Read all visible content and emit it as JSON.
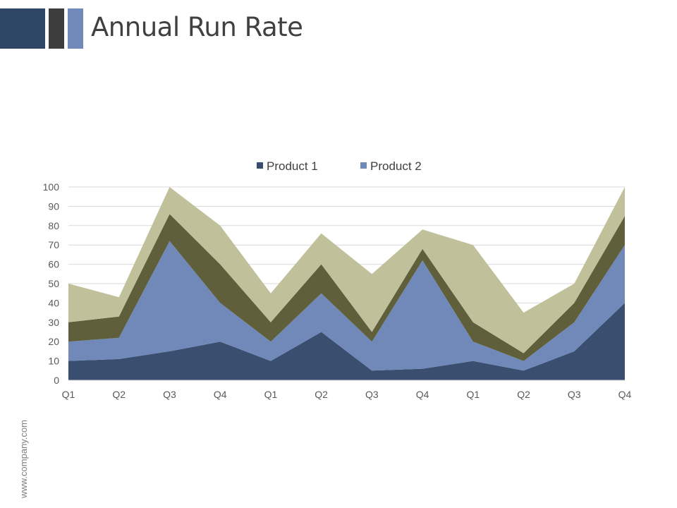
{
  "header": {
    "title": "Annual Run Rate"
  },
  "footer": {
    "watermark": "www.company.com"
  },
  "colors": {
    "product1": "#3a4f70",
    "product2": "#7089b8",
    "product3": "#5f5f3b",
    "product4": "#c0c09a",
    "deco_dark": "#2f4565",
    "deco_gray": "#3d3d3d",
    "deco_blue": "#7089b8"
  },
  "chart_data": {
    "type": "area",
    "stacked": true,
    "categories": [
      "Q1",
      "Q2",
      "Q3",
      "Q4",
      "Q1",
      "Q2",
      "Q3",
      "Q4",
      "Q1",
      "Q2",
      "Q3",
      "Q4"
    ],
    "series": [
      {
        "name": "Product 1",
        "values": [
          10,
          11,
          15,
          20,
          10,
          25,
          5,
          6,
          10,
          5,
          15,
          40
        ]
      },
      {
        "name": "Product 2",
        "values": [
          10,
          11,
          57,
          20,
          10,
          20,
          15,
          56,
          10,
          5,
          15,
          30
        ]
      },
      {
        "name": "",
        "values": [
          10,
          11,
          14,
          20,
          10,
          15,
          5,
          6,
          10,
          4,
          10,
          15
        ]
      },
      {
        "name": "",
        "values": [
          20,
          10,
          14,
          20,
          15,
          16,
          30,
          10,
          40,
          21,
          10,
          15
        ]
      }
    ],
    "ylim": [
      0,
      100
    ],
    "yticks": [
      0,
      10,
      20,
      30,
      40,
      50,
      60,
      70,
      80,
      90,
      100
    ],
    "grid": true,
    "legend": "top-center"
  }
}
